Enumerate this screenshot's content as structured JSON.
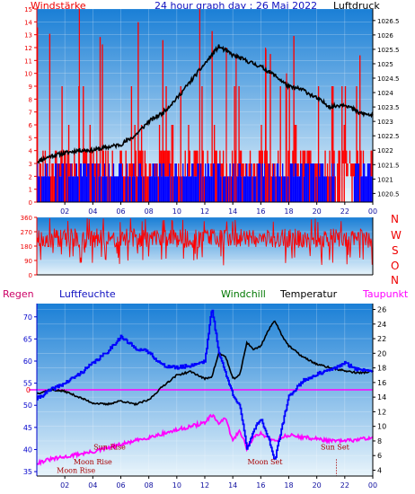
{
  "header": {
    "left": "Windstärke",
    "title": "24 hour graph day : 26 Mai 2022",
    "right": "Luftdruck"
  },
  "legend": {
    "regen": "Regen",
    "luftfeuchte": "Luftfeuchte",
    "windchill": "Windchill",
    "temperatur": "Temperatur",
    "taupunkt": "Taupunkt"
  },
  "compass": [
    "N",
    "W",
    "S",
    "O",
    "N"
  ],
  "colors": {
    "wind": "#ff0000",
    "gust_bars": "#ff0000",
    "dir_bars": "#0000ff",
    "pressure": "#000000",
    "humidity": "#0000ff",
    "temperature": "#000000",
    "dewpoint": "#ff00ff",
    "zero_line": "#ff00ff",
    "annotation": "#aa0000",
    "bg_top": "#1a7fd6",
    "bg_bottom": "#e8f4fb"
  },
  "chart_data": [
    {
      "type": "bar",
      "name": "wind-pressure",
      "x_ticks": [
        "02",
        "04",
        "06",
        "08",
        "10",
        "12",
        "14",
        "16",
        "18",
        "20",
        "22",
        "00"
      ],
      "y_left_ticks": [
        "0",
        "1",
        "2",
        "3",
        "4",
        "5",
        "6",
        "7",
        "8",
        "9",
        "10",
        "11",
        "12",
        "13",
        "14",
        "15"
      ],
      "y_left_range": [
        0,
        15
      ],
      "y_right_ticks": [
        "1020.5",
        "1021",
        "1021.5",
        "1022",
        "1022.5",
        "1023",
        "1023.5",
        "1024",
        "1024.5",
        "1025",
        "1025.5",
        "1026",
        "1026.5"
      ],
      "y_right_range": [
        1020.2,
        1026.9
      ],
      "pressure_series": {
        "x": [
          0,
          1,
          2,
          3,
          4,
          5,
          6,
          7,
          8,
          9,
          10,
          11,
          12,
          13,
          14,
          15,
          16,
          17,
          18,
          19,
          20,
          21,
          22,
          23,
          24
        ],
        "y": [
          1021.6,
          1021.8,
          1021.9,
          1022.0,
          1022.0,
          1022.1,
          1022.2,
          1022.5,
          1023.0,
          1023.3,
          1023.8,
          1024.4,
          1025.0,
          1025.6,
          1025.3,
          1025.1,
          1024.9,
          1024.6,
          1024.2,
          1024.1,
          1023.8,
          1023.5,
          1023.6,
          1023.3,
          1023.2
        ]
      },
      "wind_levels": [
        2,
        3,
        4,
        6,
        9
      ]
    },
    {
      "type": "line",
      "name": "wind-direction",
      "y_ticks": [
        "0",
        "90",
        "180",
        "270",
        "360"
      ],
      "y_range": [
        0,
        360
      ],
      "x_range": [
        0,
        24
      ]
    },
    {
      "type": "line",
      "name": "temp-humidity",
      "x_ticks": [
        "02",
        "04",
        "06",
        "08",
        "10",
        "12",
        "14",
        "16",
        "18",
        "20",
        "22",
        "00"
      ],
      "humidity_ticks": [
        "35",
        "40",
        "45",
        "50",
        "55",
        "60",
        "65",
        "70"
      ],
      "humidity_range": [
        34,
        73
      ],
      "temp_ticks": [
        "4",
        "6",
        "8",
        "10",
        "12",
        "14",
        "16",
        "18",
        "20",
        "22",
        "24",
        "26"
      ],
      "temp_range": [
        3.2,
        26.8
      ],
      "rain_zero_label": "0",
      "temperature": {
        "x": [
          0,
          1,
          2,
          3,
          4,
          5,
          6,
          7,
          8,
          9,
          10,
          11,
          12,
          12.5,
          13,
          13.5,
          14,
          14.5,
          15,
          15.5,
          16,
          16.5,
          17,
          17.5,
          18,
          19,
          20,
          21,
          22,
          23,
          24
        ],
        "y": [
          14.5,
          15.0,
          14.8,
          14.0,
          13.2,
          13.0,
          13.5,
          13.0,
          13.6,
          15.5,
          17.0,
          17.5,
          16.5,
          16.8,
          20.0,
          19.5,
          16.5,
          17.0,
          21.5,
          20.5,
          21.0,
          23.0,
          24.5,
          22.5,
          21.0,
          19.5,
          18.5,
          18.0,
          17.6,
          17.3,
          17.5
        ]
      },
      "humidity": {
        "x": [
          0,
          1,
          2,
          3,
          4,
          5,
          6,
          7,
          8,
          9,
          10,
          11,
          12,
          12.5,
          13,
          13.5,
          14,
          14.5,
          15,
          15.5,
          16,
          16.5,
          17,
          17.5,
          18,
          19,
          20,
          21,
          22,
          23,
          24
        ],
        "y": [
          51.5,
          53.5,
          55.0,
          57.0,
          59.5,
          62.0,
          65.5,
          63.0,
          62.0,
          59.0,
          58.5,
          59.0,
          60.0,
          72.0,
          62.0,
          57.0,
          52.5,
          50.0,
          40.0,
          44.5,
          47.0,
          43.0,
          37.5,
          45.0,
          52.0,
          55.5,
          57.0,
          58.0,
          59.5,
          58.0,
          58.0
        ]
      },
      "dewpoint": {
        "x": [
          0,
          1,
          2,
          3,
          4,
          5,
          6,
          7,
          8,
          9,
          10,
          11,
          12,
          12.5,
          13,
          13.5,
          14,
          14.5,
          15,
          15.5,
          16,
          16.5,
          17,
          17.5,
          18,
          19,
          20,
          21,
          22,
          23,
          24
        ],
        "y": [
          5.0,
          5.5,
          5.8,
          6.2,
          6.5,
          7.0,
          7.5,
          8.0,
          8.5,
          9.0,
          9.5,
          10.0,
          10.5,
          11.5,
          10.5,
          11.0,
          8.0,
          9.5,
          7.0,
          8.5,
          9.0,
          8.5,
          8.0,
          8.5,
          8.8,
          8.5,
          8.3,
          8.0,
          8.0,
          8.2,
          8.5
        ]
      },
      "annotations": [
        {
          "text": "Sun Rise",
          "x": 5.2,
          "temp": 6.8
        },
        {
          "text": "Moon Rise",
          "x": 4.0,
          "temp": 4.8
        },
        {
          "text": "Moon Set",
          "x": 16.3,
          "temp": 4.8
        },
        {
          "text": "Sun Set",
          "x": 21.3,
          "temp": 6.8
        },
        {
          "text": "Moon Rise",
          "x": 2.8,
          "temp": 3.6
        }
      ],
      "rain_zero_temp": 15.0
    }
  ]
}
